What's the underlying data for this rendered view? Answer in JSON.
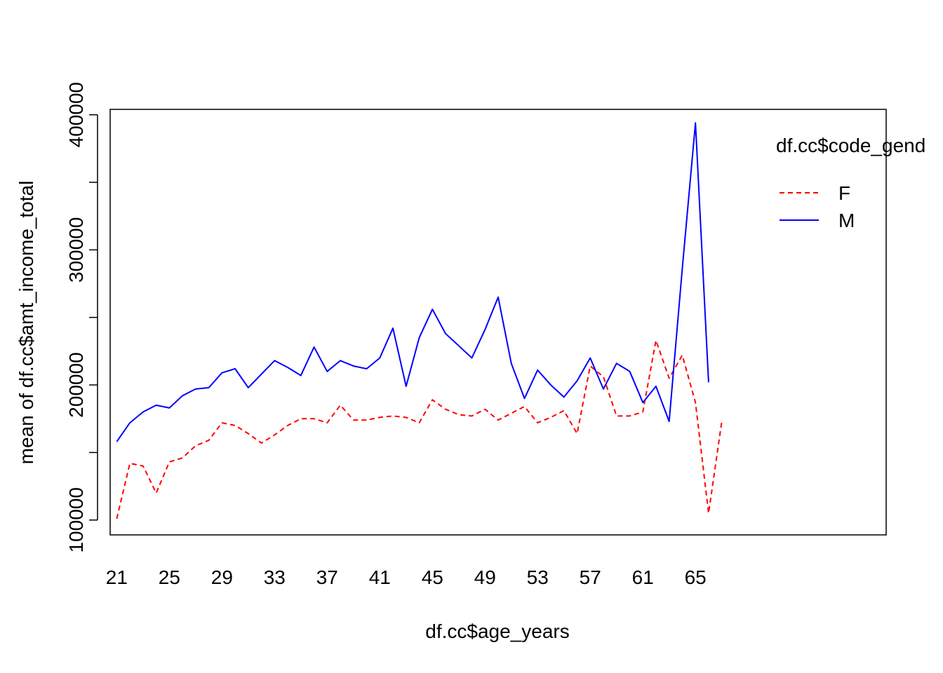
{
  "chart_data": {
    "type": "line",
    "title": "",
    "xlabel": "df.cc$age_years",
    "ylabel": "mean of  df.cc$amt_income_total",
    "x": [
      21,
      22,
      23,
      24,
      25,
      26,
      27,
      28,
      29,
      30,
      31,
      32,
      33,
      34,
      35,
      36,
      37,
      38,
      39,
      40,
      41,
      42,
      43,
      44,
      45,
      46,
      47,
      48,
      49,
      50,
      51,
      52,
      53,
      54,
      55,
      56,
      57,
      58,
      59,
      60,
      61,
      62,
      63,
      64,
      65,
      66,
      67
    ],
    "x_ticks": [
      "21",
      "25",
      "29",
      "33",
      "37",
      "41",
      "45",
      "49",
      "53",
      "57",
      "61",
      "65"
    ],
    "y_ticks": [
      100000,
      200000,
      300000,
      400000
    ],
    "y_tick_labels": [
      "100000",
      "200000",
      "300000",
      "400000"
    ],
    "xlim": [
      20.5,
      79.5
    ],
    "ylim": [
      89000,
      404000
    ],
    "grid": false,
    "legend": {
      "title": "df.cc$code_gend",
      "position": "top-right",
      "entries": [
        "F",
        "M"
      ]
    },
    "series": [
      {
        "name": "F",
        "color": "#ff0000",
        "dash": "dashed",
        "values": [
          101000,
          142000,
          140000,
          120000,
          143000,
          146000,
          155000,
          159000,
          172000,
          170000,
          164000,
          157000,
          163000,
          170000,
          175000,
          175000,
          172000,
          185000,
          174000,
          174000,
          176000,
          177000,
          176000,
          172000,
          189000,
          182000,
          178000,
          177000,
          182000,
          174000,
          179000,
          184000,
          172000,
          176000,
          181000,
          164000,
          214000,
          206000,
          177000,
          177000,
          180000,
          233000,
          205000,
          222000,
          187000,
          105000,
          173000
        ]
      },
      {
        "name": "M",
        "color": "#0000ff",
        "dash": "solid",
        "values": [
          158000,
          172000,
          180000,
          185000,
          183000,
          192000,
          197000,
          198000,
          209000,
          212000,
          198000,
          208000,
          218000,
          213000,
          207000,
          228000,
          210000,
          218000,
          214000,
          212000,
          220000,
          242000,
          199000,
          235000,
          256000,
          238000,
          229000,
          220000,
          241000,
          265000,
          216000,
          190000,
          211000,
          200000,
          191000,
          203000,
          220000,
          197000,
          216000,
          210000,
          187000,
          199000,
          173000,
          286000,
          394000,
          202000,
          null
        ]
      }
    ]
  }
}
